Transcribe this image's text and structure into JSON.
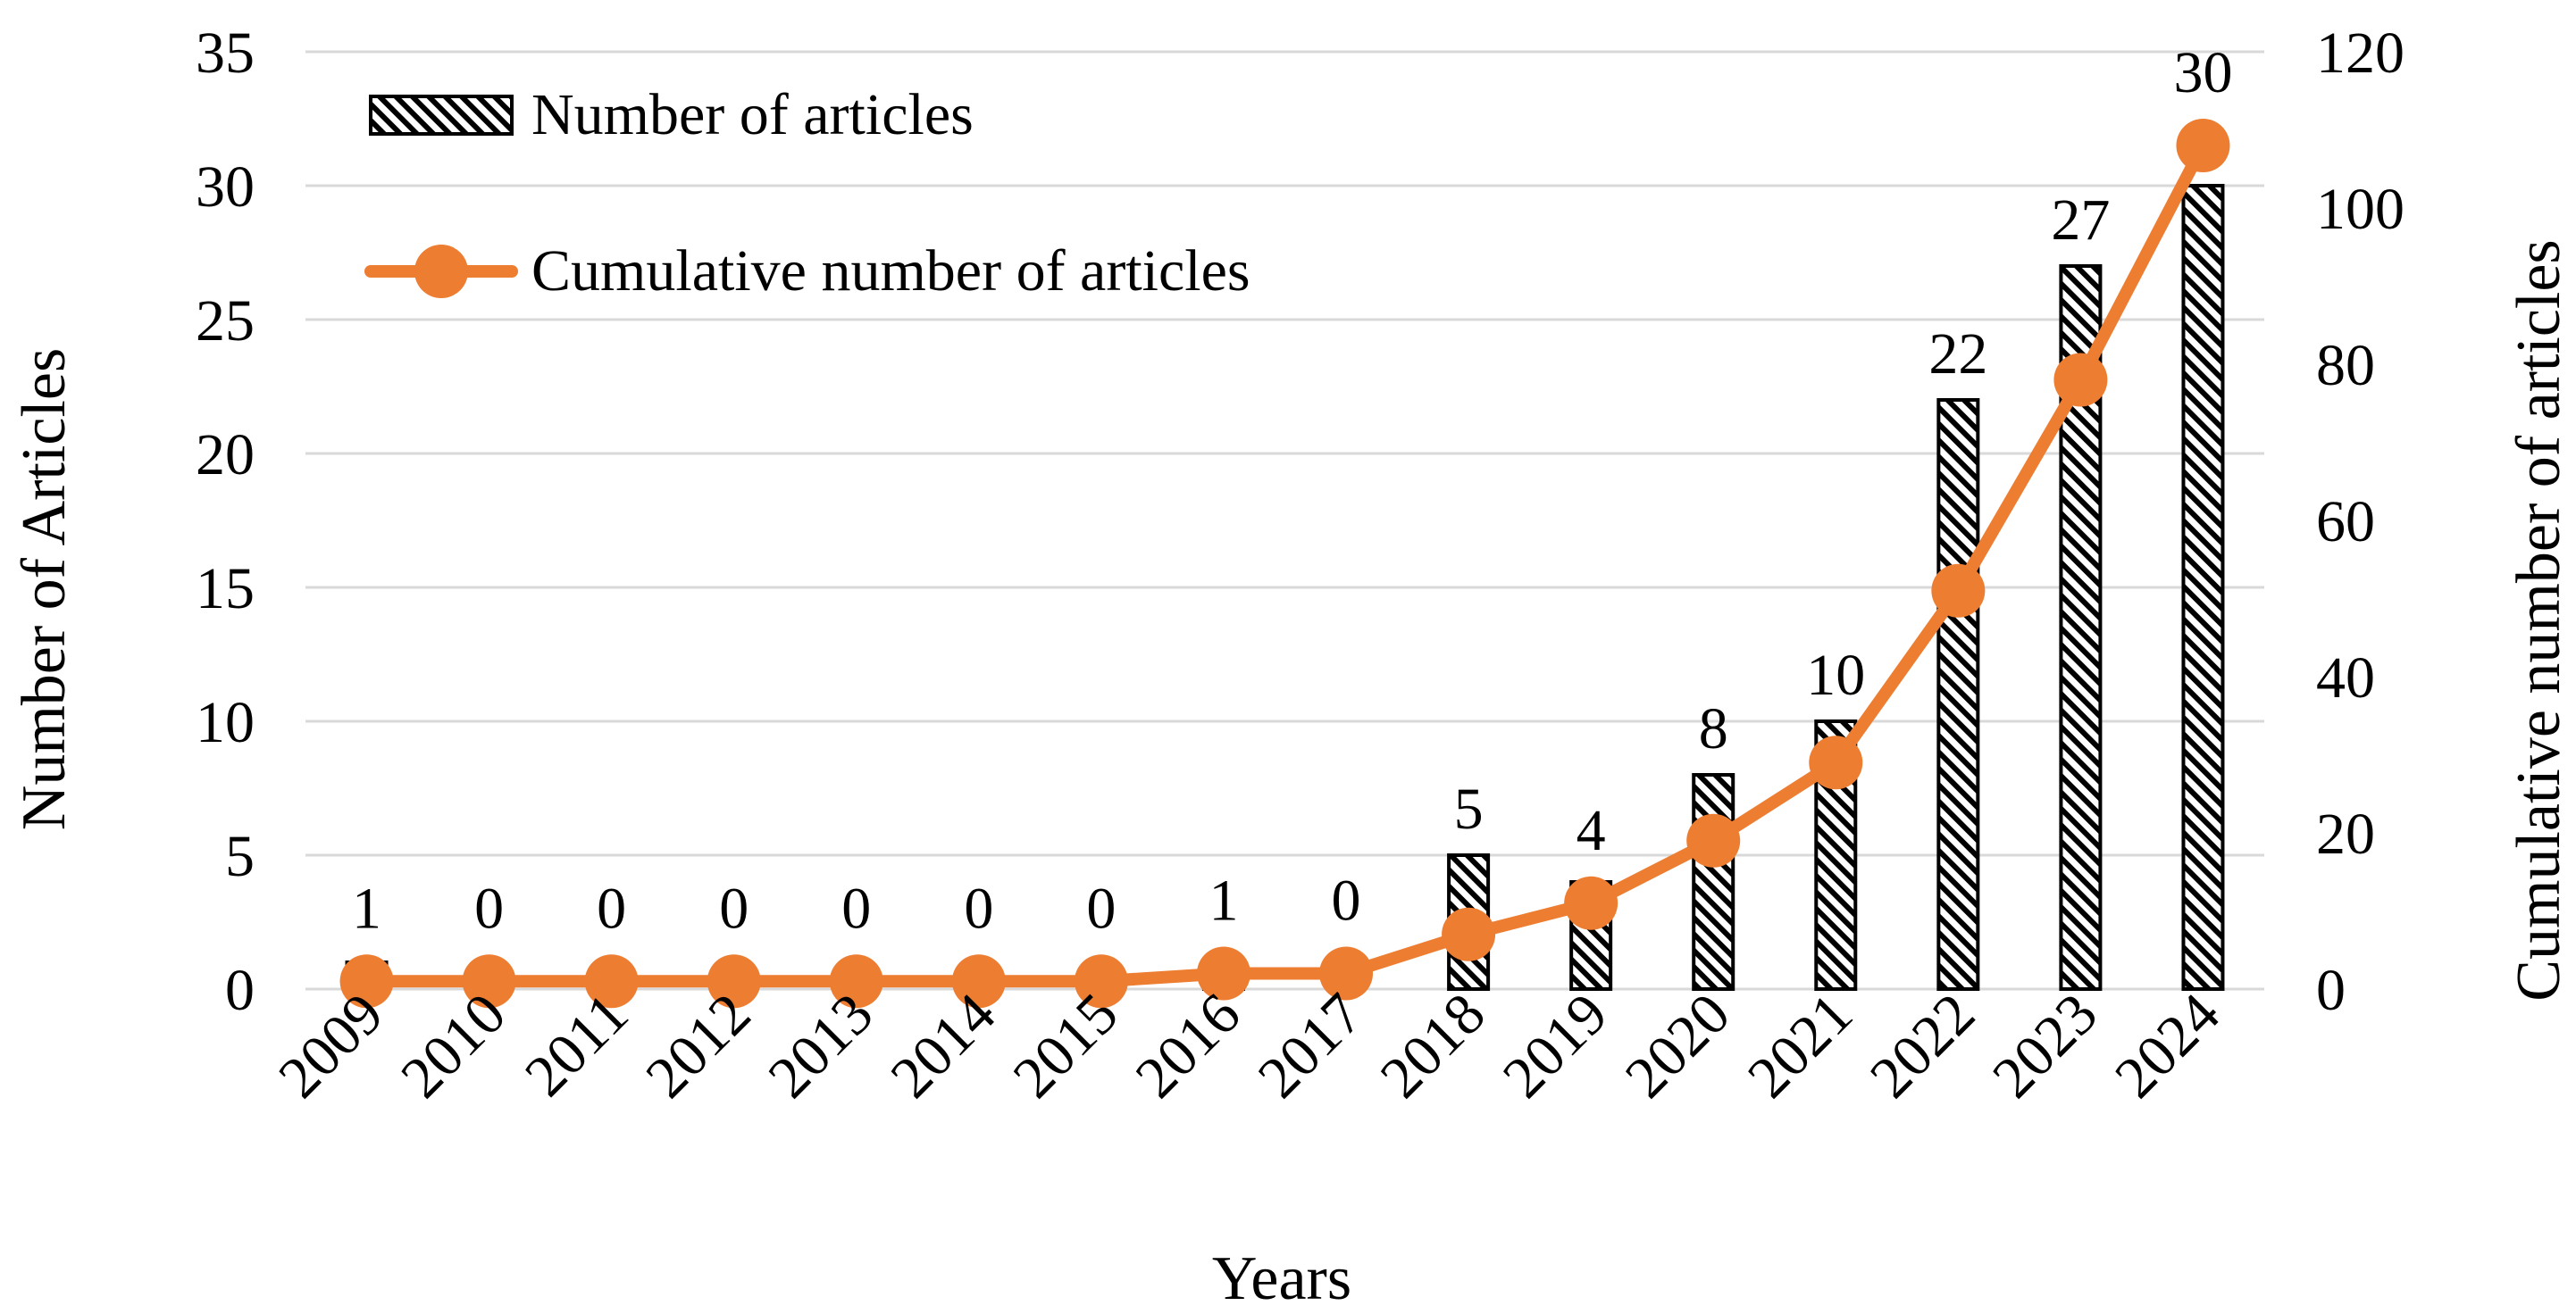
{
  "chart_data": {
    "type": "bar",
    "categories": [
      "2009",
      "2010",
      "2011",
      "2012",
      "2013",
      "2014",
      "2015",
      "2016",
      "2017",
      "2018",
      "2019",
      "2020",
      "2021",
      "2022",
      "2023",
      "2024"
    ],
    "series": [
      {
        "name": "Number of articles",
        "type": "bar",
        "axis": "left",
        "pattern": "diagonal-hatch",
        "values": [
          1,
          0,
          0,
          0,
          0,
          0,
          0,
          1,
          0,
          5,
          4,
          8,
          10,
          22,
          27,
          30
        ],
        "data_labels": [
          "1",
          "0",
          "0",
          "0",
          "0",
          "0",
          "0",
          "1",
          "0",
          "5",
          "4",
          "8",
          "10",
          "22",
          "27",
          "30"
        ]
      },
      {
        "name": "Cumulative number of articles",
        "type": "line",
        "axis": "right",
        "color": "#ED7D31",
        "marker": "circle",
        "values": [
          1,
          1,
          1,
          1,
          1,
          1,
          1,
          2,
          2,
          7,
          11,
          19,
          29,
          51,
          78,
          108
        ]
      }
    ],
    "xlabel": "Years",
    "ylabel": "Number of Articles",
    "y2label": "Cumulative number of articles",
    "ylim": [
      0,
      35
    ],
    "yticks": [
      "0",
      "5",
      "10",
      "15",
      "20",
      "25",
      "30",
      "35"
    ],
    "y2lim": [
      0,
      120
    ],
    "y2ticks": [
      "0",
      "20",
      "40",
      "60",
      "80",
      "100",
      "120"
    ],
    "grid": true,
    "legend_position": "top-left"
  }
}
